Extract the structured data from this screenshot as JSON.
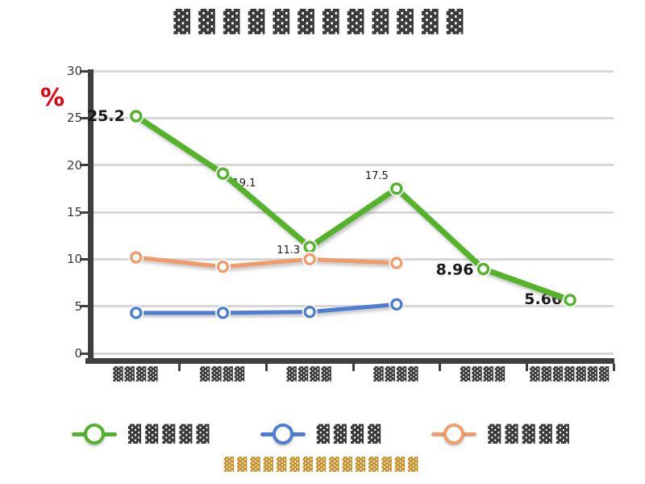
{
  "title": {
    "text": "▓▓▓▓▓▓▓▓▓▓▓▓"
  },
  "y_axis": {
    "unit": "%",
    "unit_color": "#e60012",
    "ticks": [
      "30",
      "25",
      "20",
      "15",
      "10",
      "5",
      "0"
    ]
  },
  "x_axis": {
    "categories": [
      "▓▓▓▓",
      "▓▓▓▓",
      "▓▓▓▓",
      "▓▓▓▓",
      "▓▓▓▓",
      "▓▓▓▓▓▓▓"
    ]
  },
  "legend": {
    "items": [
      {
        "label": "▓▓▓▓▓",
        "color": "#54b32c"
      },
      {
        "label": "▓▓▓▓",
        "color": "#4d7ed2"
      },
      {
        "label": "▓▓▓▓▓",
        "color": "#f09c6b"
      }
    ]
  },
  "caption": {
    "text": "▓▓▓▓▓▓▓▓▓▓▓▓▓▓▓",
    "color": "#c79430"
  },
  "colors": {
    "grid": "#d8d8d8",
    "axis": "#3f3f3f",
    "text": "#3b3b3b",
    "point_label": "#1a1a1a"
  },
  "chart_data": {
    "type": "line",
    "title": "▓▓▓▓▓▓▓▓▓▓▓▓",
    "categories": [
      "▓▓▓▓",
      "▓▓▓▓",
      "▓▓▓▓",
      "▓▓▓▓",
      "▓▓▓▓",
      "▓▓▓▓▓▓▓"
    ],
    "series": [
      {
        "name": "▓▓▓▓▓",
        "color": "#54b32c",
        "line_width": 7,
        "values": [
          25.2,
          19.1,
          11.3,
          17.5,
          8.96,
          5.66
        ],
        "point_labels": [
          {
            "text": "25.2",
            "dx": -14,
            "dy": 6,
            "anchor": "end",
            "size": 19,
            "weight": "bold"
          },
          {
            "text": "19.1",
            "dx": 12,
            "dy": 16,
            "anchor": "start",
            "size": 13,
            "weight": "normal"
          },
          {
            "text": "11.3",
            "dx": -12,
            "dy": 8,
            "anchor": "end",
            "size": 13,
            "weight": "normal"
          },
          {
            "text": "17.5",
            "dx": -10,
            "dy": -12,
            "anchor": "end",
            "size": 13,
            "weight": "normal"
          },
          {
            "text": "8.96",
            "dx": -12,
            "dy": 7,
            "anchor": "end",
            "size": 19,
            "weight": "bold"
          },
          {
            "text": "5.66",
            "dx": -10,
            "dy": 5,
            "anchor": "end",
            "size": 19,
            "weight": "bold"
          }
        ]
      },
      {
        "name": "▓▓▓▓",
        "color": "#4d7ed2",
        "line_width": 5,
        "values": [
          4.3,
          4.3,
          4.4,
          5.2,
          null,
          null
        ],
        "point_labels": []
      },
      {
        "name": "▓▓▓▓▓",
        "color": "#f09c6b",
        "line_width": 5,
        "values": [
          10.2,
          9.2,
          10.0,
          9.6,
          null,
          null
        ],
        "point_labels": []
      }
    ],
    "xlabel": "",
    "ylabel": "%",
    "ylim": [
      0,
      30
    ],
    "ytick_step": 5,
    "grid": true,
    "legend_position": "bottom"
  }
}
